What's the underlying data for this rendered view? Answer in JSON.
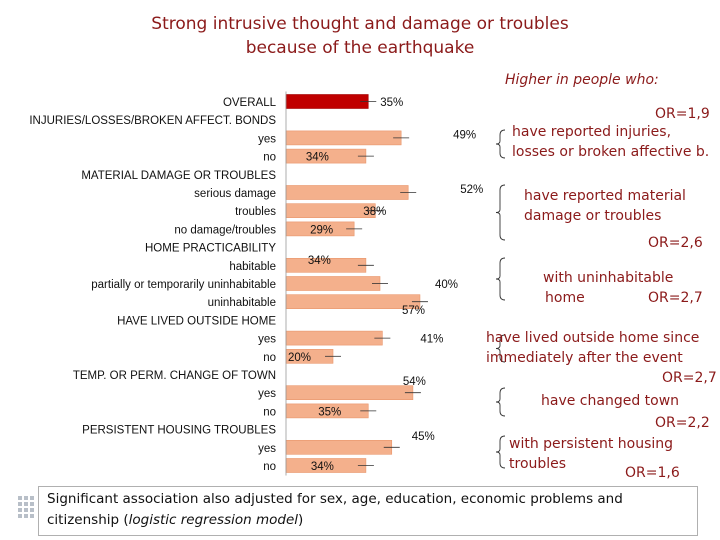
{
  "title_line1": "Strong intrusive thought and damage or troubles",
  "title_line2": "because of the earthquake",
  "higher_label": "Higher in people who:",
  "annotations": [
    {
      "key": "a1",
      "lines": [
        "OR=1,9"
      ]
    },
    {
      "key": "a2",
      "lines": [
        "have reported injuries,",
        "losses or broken affective b."
      ]
    },
    {
      "key": "a3",
      "lines": [
        "have reported  material",
        "damage or troubles"
      ]
    },
    {
      "key": "a4",
      "lines": [
        "OR=2,6"
      ]
    },
    {
      "key": "a5",
      "lines": [
        "with uninhabitable"
      ]
    },
    {
      "key": "a6",
      "lines": [
        "home"
      ]
    },
    {
      "key": "a7",
      "lines": [
        "OR=2,7"
      ]
    },
    {
      "key": "a8",
      "lines": [
        "have lived outside home since",
        "immediately after the event"
      ]
    },
    {
      "key": "a9",
      "lines": [
        "OR=2,7"
      ]
    },
    {
      "key": "a10",
      "lines": [
        "have changed town"
      ]
    },
    {
      "key": "a11",
      "lines": [
        "OR=2,2"
      ]
    },
    {
      "key": "a12",
      "lines": [
        "with persistent housing",
        "troubles"
      ]
    },
    {
      "key": "a13",
      "lines": [
        "OR=1,6"
      ]
    }
  ],
  "footnote_text": "Significant association also adjusted for sex, age, education, economic problems and citizenship (",
  "footnote_italic": "logistic regression model",
  "footnote_end": ")",
  "colors": {
    "title": "#8b1a1a",
    "overall_bar": "#c00000",
    "bar": "#f4b08c",
    "bar_stroke": "#e8956a",
    "text": "#8b1a1a"
  },
  "chart_data": {
    "type": "bar",
    "orientation": "horizontal",
    "title": "Strong intrusive thought and damage or troubles because of the earthquake",
    "xlim": [
      0,
      100
    ],
    "rows": [
      {
        "label": "OVERALL",
        "kind": "overall",
        "value": 35,
        "value_label": "35%"
      },
      {
        "label": "INJURIES/LOSSES/BROKEN AFFECT. BONDS",
        "kind": "header"
      },
      {
        "label": "yes",
        "kind": "bar",
        "value": 49,
        "value_label": "49%"
      },
      {
        "label": "no",
        "kind": "bar",
        "value": 34,
        "value_label": "34%"
      },
      {
        "label": "MATERIAL DAMAGE OR TROUBLES",
        "kind": "header"
      },
      {
        "label": "serious damage",
        "kind": "bar",
        "value": 52,
        "value_label": "52%"
      },
      {
        "label": "troubles",
        "kind": "bar",
        "value": 38,
        "value_label": "38%"
      },
      {
        "label": "no damage/troubles",
        "kind": "bar",
        "value": 29,
        "value_label": "29%"
      },
      {
        "label": "HOME PRACTICABILITY",
        "kind": "header"
      },
      {
        "label": "habitable",
        "kind": "bar",
        "value": 34,
        "value_label": "34%"
      },
      {
        "label": "partially or temporarily uninhabitable",
        "kind": "bar",
        "value": 40,
        "value_label": "40%"
      },
      {
        "label": "uninhabitable",
        "kind": "bar",
        "value": 57,
        "value_label": "57%"
      },
      {
        "label": "HAVE LIVED OUTSIDE HOME",
        "kind": "header"
      },
      {
        "label": "yes",
        "kind": "bar",
        "value": 41,
        "value_label": "41%"
      },
      {
        "label": "no",
        "kind": "bar",
        "value": 20,
        "value_label": "20%"
      },
      {
        "label": "TEMP. OR PERM. CHANGE OF TOWN",
        "kind": "header"
      },
      {
        "label": "yes",
        "kind": "bar",
        "value": 54,
        "value_label": "54%"
      },
      {
        "label": "no",
        "kind": "bar",
        "value": 35,
        "value_label": "35%"
      },
      {
        "label": "PERSISTENT HOUSING TROUBLES",
        "kind": "header"
      },
      {
        "label": "yes",
        "kind": "bar",
        "value": 45,
        "value_label": "45%"
      },
      {
        "label": "no",
        "kind": "bar",
        "value": 34,
        "value_label": "34%"
      }
    ]
  }
}
